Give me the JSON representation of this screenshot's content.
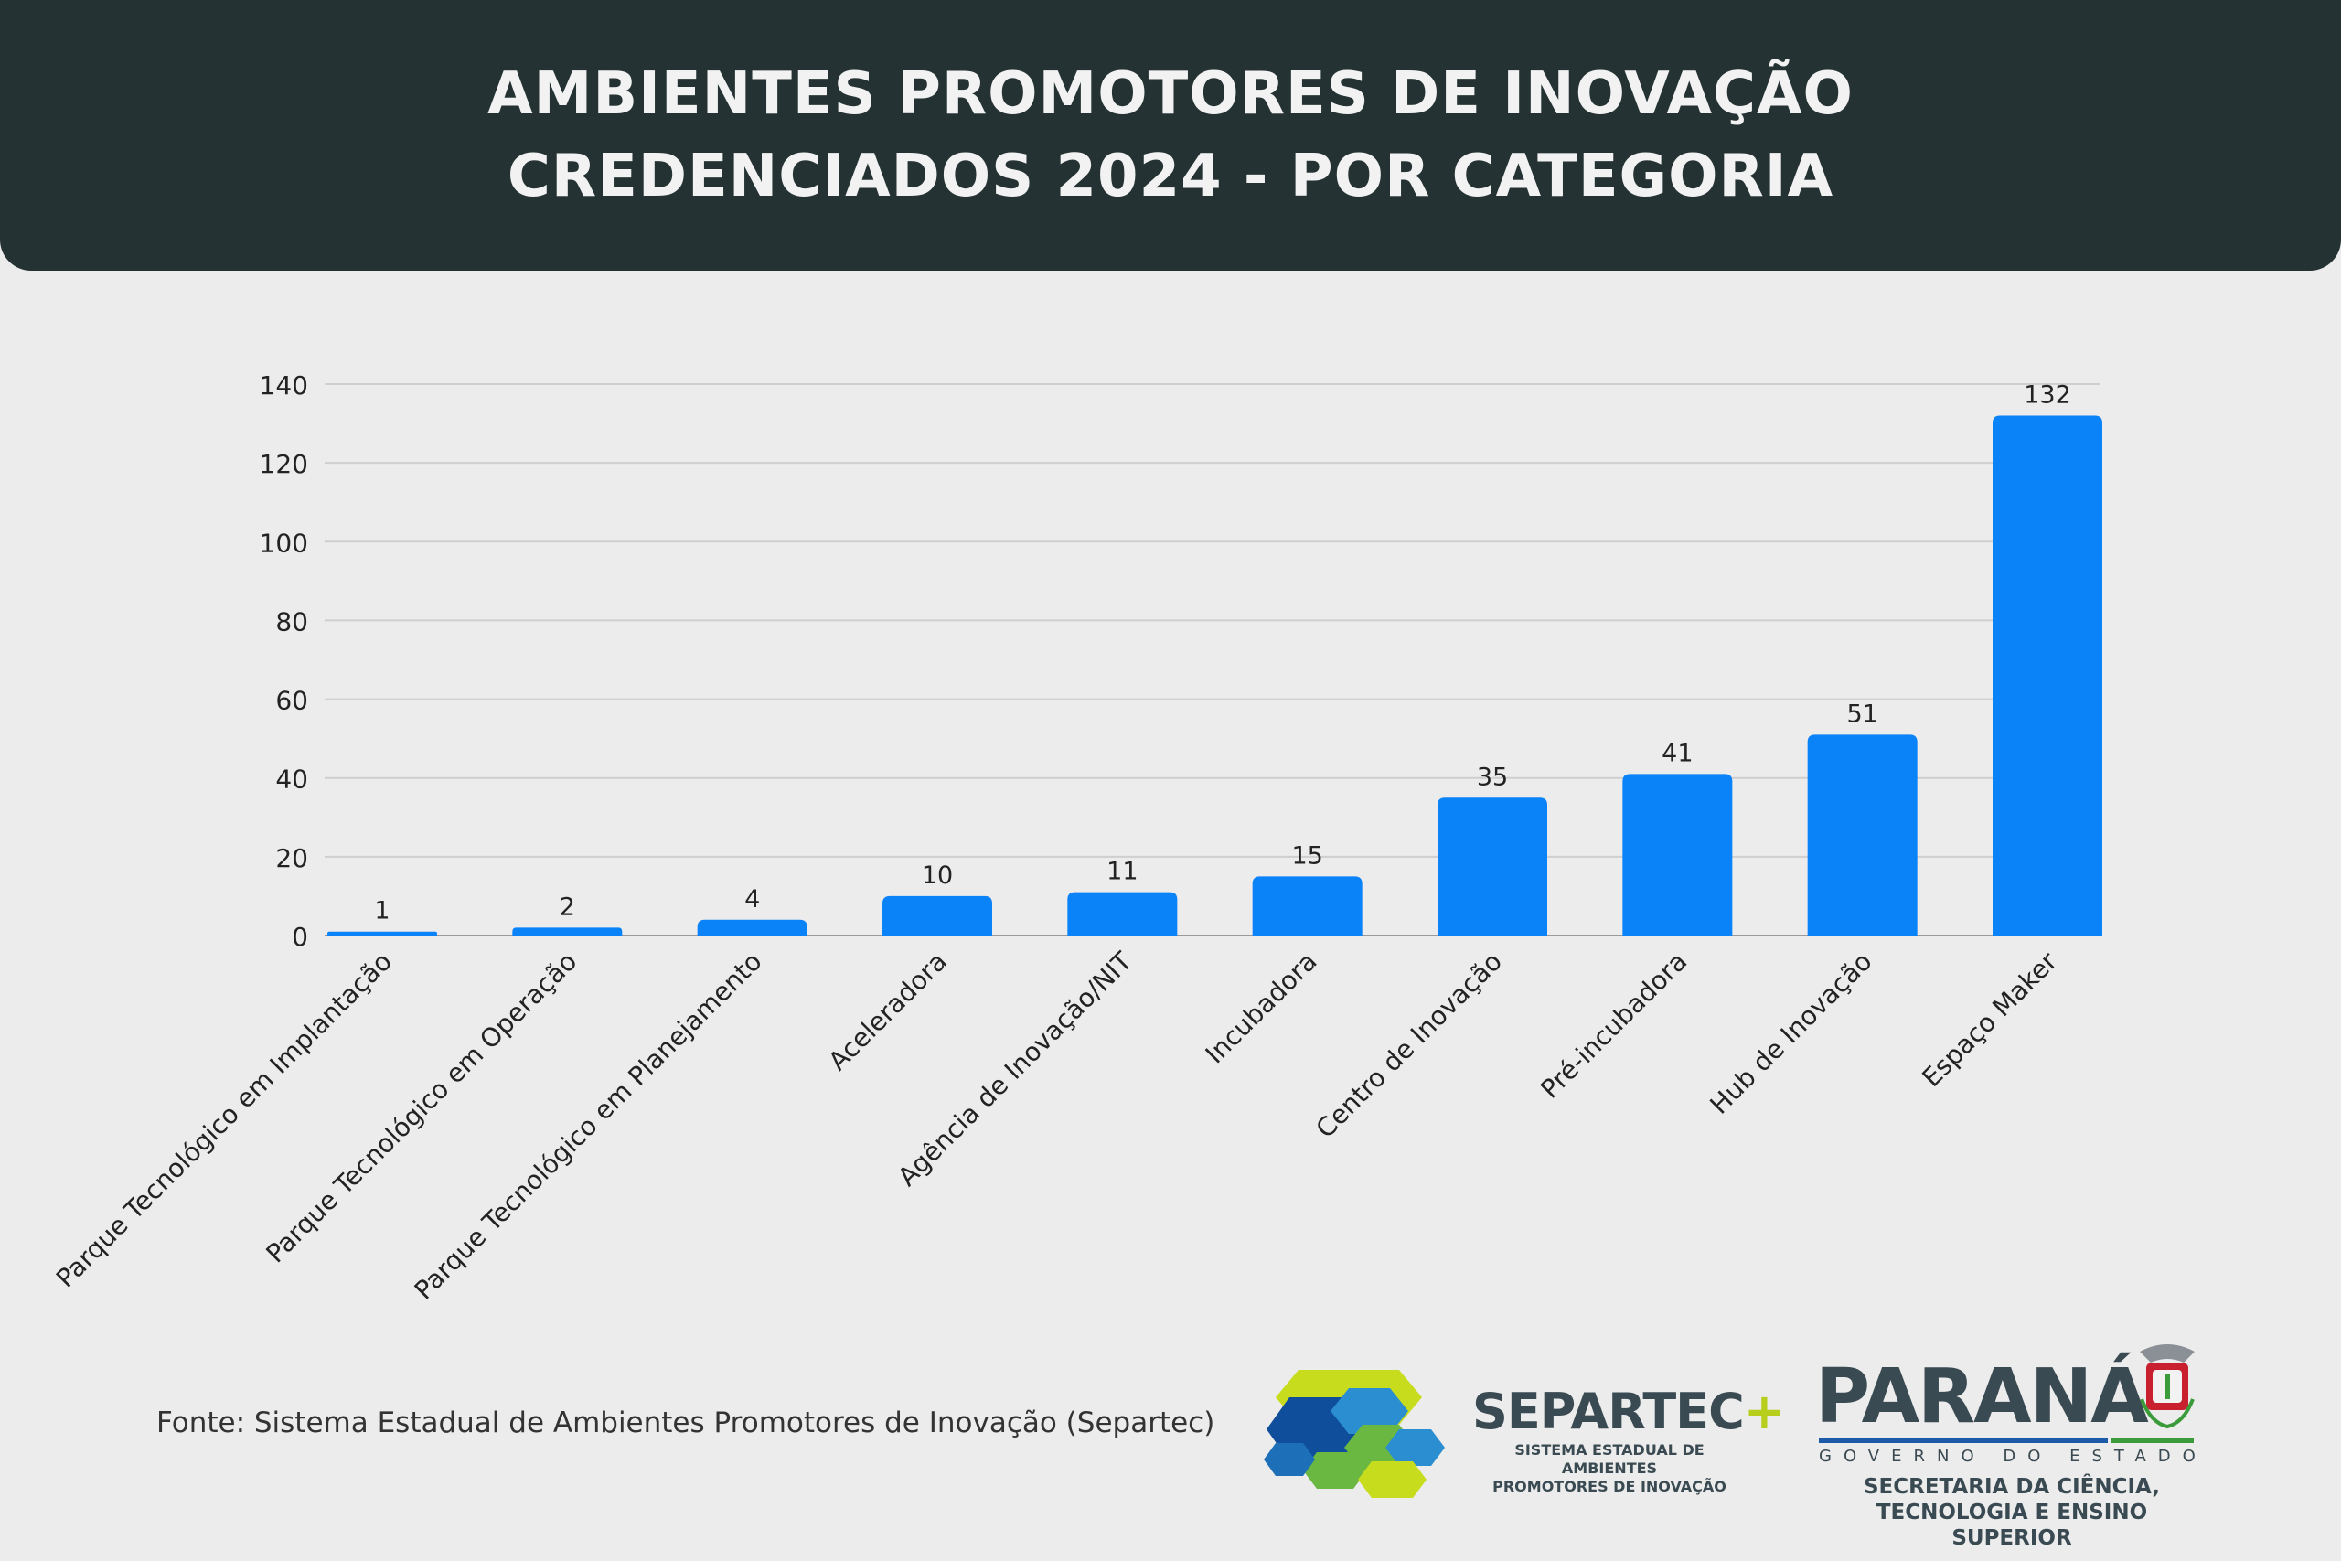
{
  "header": {
    "title_line1": "AMBIENTES PROMOTORES DE INOVAÇÃO",
    "title_line2": "CREDENCIADOS 2024 - POR CATEGORIA"
  },
  "chart_data": {
    "type": "bar",
    "categories": [
      "Parque Tecnológico em Implantação",
      "Parque Tecnológico em Operação",
      "Parque Tecnológico em Planejamento",
      "Aceleradora",
      "Agência de Inovação/NIT",
      "Incubadora",
      "Centro de Inovação",
      "Pré-incubadora",
      "Hub de Inovação",
      "Espaço Maker"
    ],
    "values": [
      1,
      2,
      4,
      10,
      11,
      15,
      35,
      41,
      51,
      132
    ],
    "data_labels": [
      "1",
      "2",
      "4",
      "10",
      "11",
      "15",
      "35",
      "41",
      "51",
      "132"
    ],
    "ylim": [
      0,
      140
    ],
    "yticks": [
      "0",
      "20",
      "40",
      "60",
      "80",
      "100",
      "120",
      "140"
    ],
    "grid": true,
    "bar_color": "#0a82f8",
    "xlabel": "",
    "ylabel": ""
  },
  "source_text": "Fonte: Sistema Estadual de Ambientes Promotores de Inovação (Separtec)",
  "logos": {
    "separtec": {
      "name": "SEPARTEC",
      "plus": "+",
      "sub_line1": "SISTEMA ESTADUAL DE AMBIENTES",
      "sub_line2": "PROMOTORES DE INOVAÇÃO"
    },
    "parana": {
      "name": "PARANÁ",
      "gov": "GOVERNO DO ESTADO",
      "sec_line1": "SECRETARIA DA CIÊNCIA,",
      "sec_line2": "TECNOLOGIA E ENSINO SUPERIOR"
    }
  },
  "colors": {
    "header_bg": "#253233",
    "page_bg": "#ececec",
    "bar": "#0a82f8"
  }
}
